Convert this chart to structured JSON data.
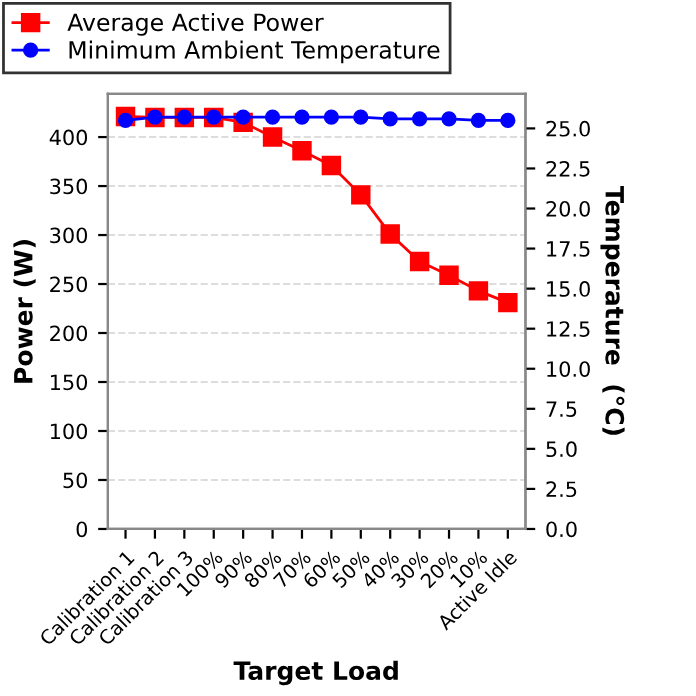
{
  "chart_data": {
    "type": "line",
    "xlabel": "Target Load",
    "ylabel": "Power (W)",
    "y2label": "Temperature  (°C)",
    "categories": [
      "Calibration 1",
      "Calibration 2",
      "Calibration 3",
      "100%",
      "90%",
      "80%",
      "70%",
      "60%",
      "50%",
      "40%",
      "30%",
      "20%",
      "10%",
      "Active Idle"
    ],
    "series": [
      {
        "name": "Average Active Power",
        "color": "#ff0000",
        "marker": "square",
        "values": [
          421,
          420,
          420,
          420,
          415,
          400,
          386,
          371,
          341,
          301,
          273,
          259,
          243,
          231
        ]
      },
      {
        "name": "Minimum Ambient Temperature",
        "color": "#0000ff",
        "marker": "circle",
        "axis": "y2",
        "values": [
          25.5,
          25.7,
          25.7,
          25.7,
          25.7,
          25.7,
          25.7,
          25.7,
          25.7,
          25.6,
          25.6,
          25.6,
          25.5,
          25.5
        ]
      }
    ],
    "ylim": [
      0,
      444
    ],
    "yticks": [
      0,
      50,
      100,
      150,
      200,
      250,
      300,
      350,
      400
    ],
    "y2lim": [
      0,
      27.15
    ],
    "y2ticks": [
      {
        "value": 0,
        "label": "0.0"
      },
      {
        "value": 2.5,
        "label": "2.5"
      },
      {
        "value": 5,
        "label": "5.0"
      },
      {
        "value": 7.5,
        "label": "7.5"
      },
      {
        "value": 10,
        "label": "10.0"
      },
      {
        "value": 12.5,
        "label": "12.5"
      },
      {
        "value": 15,
        "label": "15.0"
      },
      {
        "value": 17.5,
        "label": "17.5"
      },
      {
        "value": 20,
        "label": "20.0"
      },
      {
        "value": 22.5,
        "label": "22.5"
      },
      {
        "value": 25,
        "label": "25.0"
      }
    ],
    "grid": "y",
    "legend": "top"
  }
}
